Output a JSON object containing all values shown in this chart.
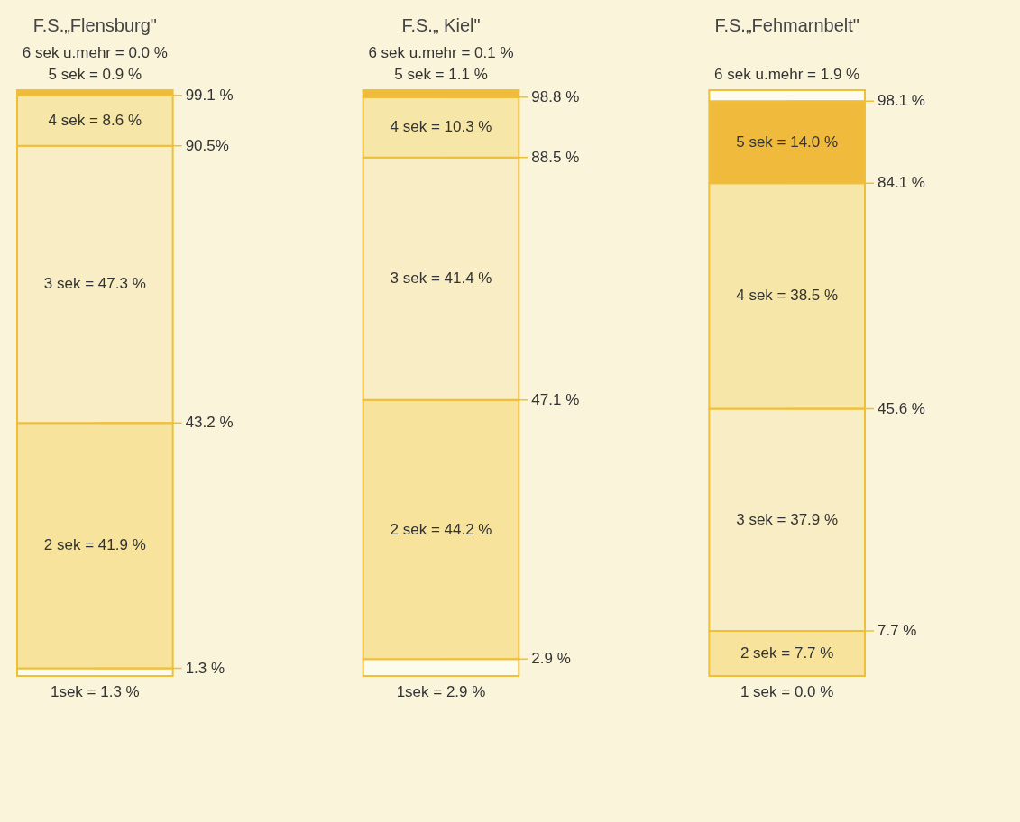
{
  "chart_data": {
    "type": "bar",
    "stacked": true,
    "categories": [
      "F.S.„Flensburg\"",
      "F.S.„ Kiel\"",
      "F.S.„Fehmarnbelt\""
    ],
    "series": [
      {
        "color": "#fdfbea",
        "values": [
          1.3,
          2.9,
          0.0
        ],
        "value_labels": [
          "1sek = 1.3 %",
          "1sek = 2.9 %",
          "1 sek = 0.0 %"
        ]
      },
      {
        "color": "#f7e39c",
        "values": [
          41.9,
          44.2,
          7.7
        ],
        "value_labels": [
          "2 sek = 41.9 %",
          "2 sek = 44.2 %",
          "2 sek = 7.7 %"
        ]
      },
      {
        "color": "#f8edc4",
        "values": [
          47.3,
          41.4,
          37.9
        ],
        "value_labels": [
          "3 sek = 47.3 %",
          "3 sek = 41.4 %",
          "3 sek = 37.9 %"
        ]
      },
      {
        "color": "#f6e6a8",
        "values": [
          8.6,
          10.3,
          38.5
        ],
        "value_labels": [
          "4 sek = 8.6 %",
          "4 sek = 10.3 %",
          "4 sek = 38.5 %"
        ]
      },
      {
        "color": "#f0ba3c",
        "values": [
          0.9,
          1.1,
          14.0
        ],
        "value_labels": [
          "5 sek = 0.9 %",
          "5 sek = 1.1 %",
          "5 sek = 14.0 %"
        ]
      },
      {
        "color": "#fefcf0",
        "values": [
          0.0,
          0.1,
          1.9
        ],
        "value_labels": [
          "6 sek u.mehr = 0.0 %",
          "6 sek u.mehr = 0.1 %",
          "6 sek u.mehr = 1.9 %"
        ]
      }
    ],
    "annotations": [
      {
        "text": "99.1 %",
        "x": "F.S.„Flensburg\"",
        "y": 99.1
      },
      {
        "text": "90.5%",
        "x": "F.S.„Flensburg\"",
        "y": 90.5
      },
      {
        "text": "43.2 %",
        "x": "F.S.„Flensburg\"",
        "y": 43.2
      },
      {
        "text": "1.3 %",
        "x": "F.S.„Flensburg\"",
        "y": 1.3
      },
      {
        "text": "98.8 %",
        "x": "F.S.„ Kiel\"",
        "y": 98.8
      },
      {
        "text": "88.5 %",
        "x": "F.S.„ Kiel\"",
        "y": 88.5
      },
      {
        "text": "47.1 %",
        "x": "F.S.„ Kiel\"",
        "y": 47.1
      },
      {
        "text": "2.9 %",
        "x": "F.S.„ Kiel\"",
        "y": 2.9
      },
      {
        "text": "98.1 %",
        "x": "F.S.„Fehmarnbelt\"",
        "y": 98.1
      },
      {
        "text": "84.1 %",
        "x": "F.S.„Fehmarnbelt\"",
        "y": 84.1
      },
      {
        "text": "45.6 %",
        "x": "F.S.„Fehmarnbelt\"",
        "y": 45.6
      },
      {
        "text": "7.7 %",
        "x": "F.S.„Fehmarnbelt\"",
        "y": 7.7
      }
    ]
  }
}
